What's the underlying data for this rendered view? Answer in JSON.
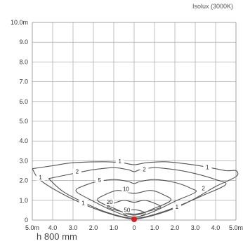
{
  "header": {
    "top_text": "",
    "subtitle": "Isolux (3000K)"
  },
  "footer": {
    "height_label": "h 800 mm"
  },
  "chart_data": {
    "type": "line",
    "title": "Isolux (3000K)",
    "xlabel": "",
    "ylabel": "",
    "xlim": [
      5.0,
      -5.0
    ],
    "ylim": [
      0,
      10.0
    ],
    "grid": true,
    "x_tick_labels": [
      "5.0m",
      "4.0",
      "3.0",
      "2.0",
      "1.0",
      "0",
      "1.0",
      "2.0",
      "3.0",
      "4.0",
      "5.0m"
    ],
    "x_tick_values": [
      -5,
      -4,
      -3,
      -2,
      -1,
      0,
      1,
      2,
      3,
      4,
      5
    ],
    "y_tick_labels": [
      "0",
      "1.0",
      "2.0",
      "3.0",
      "4.0",
      "5.0",
      "6.0",
      "7.0",
      "8.0",
      "9.0",
      "10.0m"
    ],
    "y_tick_values": [
      0,
      1,
      2,
      3,
      4,
      5,
      6,
      7,
      8,
      9,
      10
    ],
    "source_point": {
      "x": 0,
      "y": 0,
      "color": "#d81f26"
    },
    "series": [
      {
        "name": "1",
        "label_pos": [
          [
            -0.7,
            2.9
          ],
          [
            3.6,
            2.6
          ],
          [
            -4.6,
            2.1
          ],
          [
            -2.5,
            0.8
          ],
          [
            2.1,
            0.6
          ]
        ],
        "points": [
          [
            -5.0,
            2.6
          ],
          [
            -4.0,
            2.75
          ],
          [
            -3.0,
            2.9
          ],
          [
            -1.5,
            2.95
          ],
          [
            -0.6,
            2.9
          ],
          [
            0,
            2.8
          ],
          [
            0.6,
            2.9
          ],
          [
            1.5,
            2.95
          ],
          [
            2.5,
            2.85
          ],
          [
            3.5,
            2.7
          ],
          [
            4.5,
            2.5
          ],
          [
            5.0,
            2.5
          ],
          [
            5.0,
            2.2
          ],
          [
            4.0,
            1.7
          ],
          [
            3.0,
            1.1
          ],
          [
            2.0,
            0.6
          ],
          [
            1.0,
            0.25
          ],
          [
            0.3,
            0.08
          ],
          [
            0,
            0.05
          ],
          [
            -0.3,
            0.08
          ],
          [
            -1.0,
            0.25
          ],
          [
            -2.0,
            0.6
          ],
          [
            -3.0,
            1.05
          ],
          [
            -4.0,
            1.6
          ],
          [
            -4.7,
            2.1
          ],
          [
            -5.0,
            2.6
          ]
        ]
      },
      {
        "name": "2",
        "label_pos": [
          [
            -2.8,
            2.4
          ],
          [
            0.5,
            2.5
          ],
          [
            3.4,
            1.55
          ]
        ],
        "points": [
          [
            -4.2,
            2.1
          ],
          [
            -3.0,
            2.35
          ],
          [
            -2.0,
            2.55
          ],
          [
            -1.0,
            2.65
          ],
          [
            -0.3,
            2.55
          ],
          [
            0,
            2.45
          ],
          [
            0.3,
            2.55
          ],
          [
            1.0,
            2.65
          ],
          [
            2.0,
            2.55
          ],
          [
            3.0,
            2.35
          ],
          [
            4.0,
            2.05
          ],
          [
            4.5,
            1.8
          ],
          [
            3.5,
            1.3
          ],
          [
            2.5,
            0.85
          ],
          [
            1.5,
            0.45
          ],
          [
            0.5,
            0.15
          ],
          [
            0,
            0.1
          ],
          [
            -0.5,
            0.15
          ],
          [
            -1.5,
            0.45
          ],
          [
            -2.5,
            0.9
          ],
          [
            -3.5,
            1.45
          ],
          [
            -4.2,
            2.1
          ]
        ]
      },
      {
        "name": "5",
        "label_pos": [
          [
            -1.7,
            1.95
          ]
        ],
        "points": [
          [
            -2.8,
            1.6
          ],
          [
            -2.0,
            1.9
          ],
          [
            -1.0,
            2.05
          ],
          [
            -0.3,
            1.95
          ],
          [
            0,
            1.85
          ],
          [
            0.3,
            1.95
          ],
          [
            1.0,
            2.05
          ],
          [
            2.0,
            1.9
          ],
          [
            2.8,
            1.6
          ],
          [
            3.0,
            1.4
          ],
          [
            2.0,
            0.95
          ],
          [
            1.0,
            0.45
          ],
          [
            0,
            0.15
          ],
          [
            -1.0,
            0.45
          ],
          [
            -2.0,
            0.95
          ],
          [
            -2.8,
            1.4
          ],
          [
            -2.8,
            1.6
          ]
        ]
      },
      {
        "name": "10",
        "label_pos": [
          [
            -0.4,
            1.5
          ]
        ],
        "points": [
          [
            -1.4,
            1.3
          ],
          [
            -0.8,
            1.5
          ],
          [
            0,
            1.35
          ],
          [
            0.8,
            1.5
          ],
          [
            1.4,
            1.3
          ],
          [
            1.8,
            1.0
          ],
          [
            1.0,
            0.6
          ],
          [
            0,
            0.25
          ],
          [
            -1.0,
            0.6
          ],
          [
            -1.8,
            1.0
          ],
          [
            -1.4,
            1.3
          ]
        ]
      },
      {
        "name": "20",
        "label_pos": [
          [
            -1.2,
            0.85
          ]
        ],
        "points": [
          [
            -1.0,
            0.85
          ],
          [
            -0.5,
            1.0
          ],
          [
            0,
            0.9
          ],
          [
            0.5,
            1.0
          ],
          [
            1.0,
            0.85
          ],
          [
            1.3,
            0.65
          ],
          [
            0.7,
            0.45
          ],
          [
            0,
            0.3
          ],
          [
            -0.7,
            0.45
          ],
          [
            -1.3,
            0.65
          ],
          [
            -1.0,
            0.85
          ]
        ]
      },
      {
        "name": "50",
        "label_pos": [
          [
            -0.35,
            0.45
          ]
        ],
        "points": [
          [
            -0.55,
            0.35
          ],
          [
            -0.2,
            0.5
          ],
          [
            0.2,
            0.5
          ],
          [
            0.55,
            0.35
          ],
          [
            0.3,
            0.2
          ],
          [
            0,
            0.15
          ],
          [
            -0.3,
            0.2
          ],
          [
            -0.55,
            0.35
          ]
        ]
      }
    ]
  }
}
